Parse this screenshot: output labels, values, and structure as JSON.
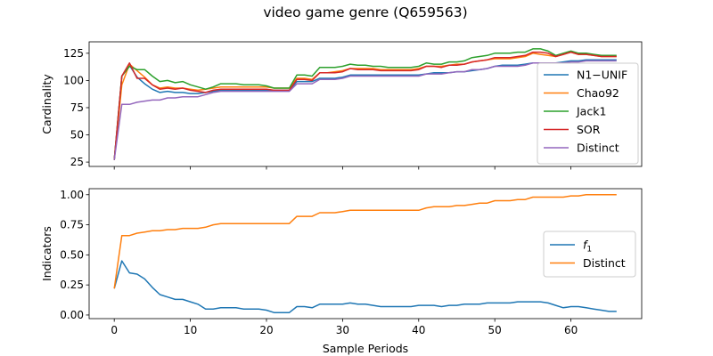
{
  "title": "video game genre (Q659563)",
  "chart_data": [
    {
      "type": "line",
      "ylabel": "Cardinality",
      "xlim": [
        -3.3,
        69.3
      ],
      "ylim": [
        21,
        135.5
      ],
      "yticks": [
        25,
        50,
        75,
        100,
        125
      ],
      "xticks": [
        0,
        10,
        20,
        30,
        40,
        50,
        60
      ],
      "show_xticklabels": false,
      "legend": "right",
      "x": [
        0,
        1,
        2,
        3,
        4,
        5,
        6,
        7,
        8,
        9,
        10,
        11,
        12,
        13,
        14,
        15,
        16,
        17,
        18,
        19,
        20,
        21,
        22,
        23,
        24,
        25,
        26,
        27,
        28,
        29,
        30,
        31,
        32,
        33,
        34,
        35,
        36,
        37,
        38,
        39,
        40,
        41,
        42,
        43,
        44,
        45,
        46,
        47,
        48,
        49,
        50,
        51,
        52,
        53,
        54,
        55,
        56,
        57,
        58,
        59,
        60,
        61,
        62,
        63,
        64,
        65,
        66
      ],
      "series": [
        {
          "name": "N1−UNIF",
          "color": "#1f77b4",
          "values": [
            27,
            104,
            114,
            103,
            97,
            92,
            89,
            90,
            89,
            89,
            88,
            88,
            89,
            90,
            91,
            91,
            91,
            91,
            91,
            91,
            91,
            91,
            91,
            91,
            99,
            99,
            99,
            102,
            102,
            102,
            103,
            105,
            105,
            105,
            105,
            105,
            105,
            105,
            105,
            105,
            105,
            106,
            107,
            107,
            107,
            108,
            108,
            109,
            110,
            111,
            113,
            114,
            114,
            114,
            115,
            116,
            116,
            116,
            116,
            117,
            118,
            118,
            119,
            119,
            119,
            119,
            119
          ]
        },
        {
          "name": "Chao92",
          "color": "#ff7f0e",
          "values": [
            27,
            96,
            115,
            109,
            103,
            96,
            93,
            94,
            93,
            93,
            92,
            91,
            92,
            93,
            94,
            94,
            94,
            94,
            94,
            94,
            94,
            93,
            93,
            93,
            102,
            102,
            101,
            107,
            107,
            108,
            109,
            111,
            111,
            111,
            111,
            110,
            110,
            110,
            110,
            110,
            111,
            113,
            113,
            113,
            114,
            115,
            115,
            117,
            118,
            119,
            120,
            120,
            120,
            121,
            122,
            125,
            124,
            123,
            122,
            124,
            126,
            124,
            124,
            123,
            122,
            122,
            122
          ]
        },
        {
          "name": "Jack1",
          "color": "#2ca02c",
          "values": [
            27,
            104,
            113,
            110,
            110,
            104,
            99,
            100,
            98,
            99,
            96,
            94,
            92,
            94,
            97,
            97,
            97,
            96,
            96,
            96,
            95,
            93,
            93,
            93,
            105,
            105,
            104,
            112,
            112,
            112,
            113,
            115,
            114,
            114,
            113,
            113,
            112,
            112,
            112,
            112,
            113,
            116,
            115,
            115,
            117,
            117,
            118,
            121,
            122,
            123,
            125,
            125,
            125,
            126,
            126,
            129,
            129,
            127,
            123,
            125,
            127,
            125,
            125,
            124,
            123,
            123,
            123
          ]
        },
        {
          "name": "SOR",
          "color": "#d62728",
          "values": [
            27,
            104,
            116,
            102,
            102,
            96,
            92,
            93,
            92,
            93,
            91,
            90,
            89,
            91,
            92,
            92,
            92,
            92,
            92,
            92,
            92,
            91,
            91,
            91,
            101,
            101,
            100,
            107,
            107,
            107,
            108,
            111,
            110,
            110,
            110,
            109,
            109,
            109,
            109,
            109,
            110,
            113,
            113,
            112,
            114,
            114,
            115,
            117,
            118,
            119,
            121,
            121,
            121,
            122,
            123,
            126,
            126,
            125,
            122,
            124,
            126,
            124,
            124,
            123,
            122,
            122,
            122
          ]
        },
        {
          "name": "Distinct",
          "color": "#9467bd",
          "values": [
            27,
            78,
            78,
            80,
            81,
            82,
            82,
            84,
            84,
            85,
            85,
            85,
            87,
            89,
            90,
            90,
            90,
            90,
            90,
            90,
            90,
            90,
            90,
            90,
            97,
            97,
            97,
            101,
            101,
            101,
            102,
            104,
            104,
            104,
            104,
            104,
            104,
            104,
            104,
            104,
            104,
            106,
            106,
            106,
            107,
            108,
            108,
            110,
            110,
            111,
            113,
            113,
            113,
            113,
            114,
            116,
            116,
            116,
            116,
            116,
            117,
            117,
            118,
            118,
            118,
            118,
            118
          ]
        }
      ]
    },
    {
      "type": "line",
      "ylabel": "Indicators",
      "xlabel": "Sample Periods",
      "xlim": [
        -3.3,
        69.3
      ],
      "ylim": [
        -0.03,
        1.05
      ],
      "yticks": [
        "0.00",
        "0.25",
        "0.50",
        "0.75",
        "1.00"
      ],
      "xticks": [
        0,
        10,
        20,
        30,
        40,
        50,
        60
      ],
      "legend": "right",
      "x": [
        0,
        1,
        2,
        3,
        4,
        5,
        6,
        7,
        8,
        9,
        10,
        11,
        12,
        13,
        14,
        15,
        16,
        17,
        18,
        19,
        20,
        21,
        22,
        23,
        24,
        25,
        26,
        27,
        28,
        29,
        30,
        31,
        32,
        33,
        34,
        35,
        36,
        37,
        38,
        39,
        40,
        41,
        42,
        43,
        44,
        45,
        46,
        47,
        48,
        49,
        50,
        51,
        52,
        53,
        54,
        55,
        56,
        57,
        58,
        59,
        60,
        61,
        62,
        63,
        64,
        65,
        66
      ],
      "series": [
        {
          "name": "f",
          "name_sub": "1",
          "color": "#1f77b4",
          "values": [
            0.22,
            0.45,
            0.35,
            0.34,
            0.3,
            0.23,
            0.17,
            0.15,
            0.13,
            0.13,
            0.11,
            0.09,
            0.05,
            0.05,
            0.06,
            0.06,
            0.06,
            0.05,
            0.05,
            0.05,
            0.04,
            0.02,
            0.02,
            0.02,
            0.07,
            0.07,
            0.06,
            0.09,
            0.09,
            0.09,
            0.09,
            0.1,
            0.09,
            0.09,
            0.08,
            0.07,
            0.07,
            0.07,
            0.07,
            0.07,
            0.08,
            0.08,
            0.08,
            0.07,
            0.08,
            0.08,
            0.09,
            0.09,
            0.09,
            0.1,
            0.1,
            0.1,
            0.1,
            0.11,
            0.11,
            0.11,
            0.11,
            0.1,
            0.08,
            0.06,
            0.07,
            0.07,
            0.06,
            0.05,
            0.04,
            0.03,
            0.03
          ]
        },
        {
          "name": "Distinct",
          "color": "#ff7f0e",
          "values": [
            0.22,
            0.66,
            0.66,
            0.68,
            0.69,
            0.7,
            0.7,
            0.71,
            0.71,
            0.72,
            0.72,
            0.72,
            0.73,
            0.75,
            0.76,
            0.76,
            0.76,
            0.76,
            0.76,
            0.76,
            0.76,
            0.76,
            0.76,
            0.76,
            0.82,
            0.82,
            0.82,
            0.85,
            0.85,
            0.85,
            0.86,
            0.87,
            0.87,
            0.87,
            0.87,
            0.87,
            0.87,
            0.87,
            0.87,
            0.87,
            0.87,
            0.89,
            0.9,
            0.9,
            0.9,
            0.91,
            0.91,
            0.92,
            0.93,
            0.93,
            0.95,
            0.95,
            0.95,
            0.96,
            0.96,
            0.98,
            0.98,
            0.98,
            0.98,
            0.98,
            0.99,
            0.99,
            1.0,
            1.0,
            1.0,
            1.0,
            1.0
          ]
        }
      ]
    }
  ]
}
